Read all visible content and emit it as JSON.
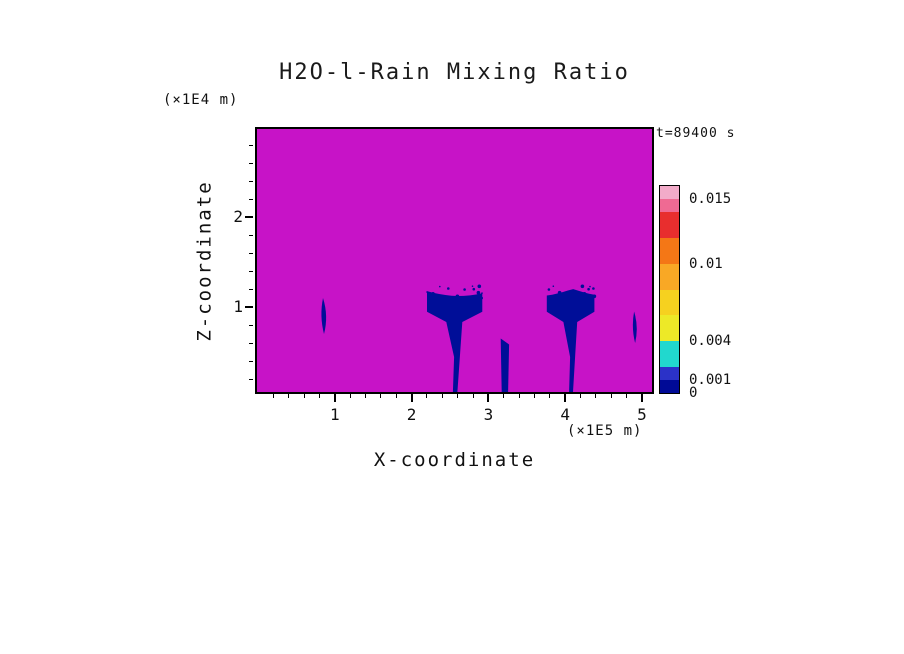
{
  "title": "H2O-l-Rain Mixing Ratio",
  "time_label": "t=89400 s",
  "axes": {
    "x_label": "X-coordinate",
    "x_units_label": "(×1E5 m)",
    "y_label": "Z-coordinate",
    "y_units_label": "(×1E4 m)"
  },
  "colors": {
    "field_background": "#C713C7",
    "rain_feature": "#000E98",
    "rain_speckle": "#2B32C8",
    "frame": "#000000",
    "text": "#111111"
  },
  "colorbar": {
    "max_value": 0.016,
    "tick_labels": [
      {
        "text": "0.015",
        "value": 0.015
      },
      {
        "text": "0.01",
        "value": 0.01
      },
      {
        "text": "0.004",
        "value": 0.004
      },
      {
        "text": "0.001",
        "value": 0.001
      },
      {
        "text": "0",
        "value": 0
      }
    ],
    "segments_bottom_to_top": [
      {
        "from": 0,
        "to": 0.001,
        "color": "#000A96"
      },
      {
        "from": 0.001,
        "to": 0.002,
        "color": "#2B32C8"
      },
      {
        "from": 0.002,
        "to": 0.004,
        "color": "#21D8CE"
      },
      {
        "from": 0.004,
        "to": 0.006,
        "color": "#EDE927"
      },
      {
        "from": 0.006,
        "to": 0.008,
        "color": "#F6D11F"
      },
      {
        "from": 0.008,
        "to": 0.01,
        "color": "#F9A825"
      },
      {
        "from": 0.01,
        "to": 0.012,
        "color": "#F47716"
      },
      {
        "from": 0.012,
        "to": 0.014,
        "color": "#E82E2E"
      },
      {
        "from": 0.014,
        "to": 0.015,
        "color": "#EF6A93"
      },
      {
        "from": 0.015,
        "to": 0.016,
        "color": "#F2ABC9"
      }
    ]
  },
  "chart_data": {
    "type": "heatmap",
    "title": "H2O-l-Rain Mixing Ratio",
    "xlabel": "X-coordinate (×1E5 m)",
    "ylabel": "Z-coordinate (×1E4 m)",
    "xlim": [
      0,
      5.15
    ],
    "ylim": [
      0,
      2.95
    ],
    "x_ticks": [
      1,
      2,
      3,
      4,
      5
    ],
    "y_ticks": [
      2,
      1
    ],
    "x_minor_tick_step": 0.2,
    "y_minor_tick_step": 0.2,
    "time_annotation": "t=89400 s",
    "colorbar_levels": [
      0,
      0.001,
      0.004,
      0.01,
      0.015
    ],
    "background_field": "uniform magenta field (rain mixing ratio ≈ 0 everywhere except rain shafts)",
    "features": [
      {
        "shape": "wisp",
        "x": [
          0.8,
          0.92
        ],
        "z": [
          0.7,
          1.1
        ],
        "description": "small rain wisp aloft"
      },
      {
        "shape": "plume",
        "x": [
          2.2,
          2.92
        ],
        "z": [
          0.05,
          1.2
        ],
        "description": "large rain plume with tail reaching surface"
      },
      {
        "shape": "streak",
        "x": [
          3.16,
          3.27
        ],
        "z": [
          0.05,
          0.65
        ],
        "description": "narrow rain streak near surface"
      },
      {
        "shape": "plume",
        "x": [
          3.76,
          4.38
        ],
        "z": [
          0.05,
          1.2
        ],
        "description": "large rain plume with tail reaching surface"
      },
      {
        "shape": "wisp",
        "x": [
          4.86,
          4.96
        ],
        "z": [
          0.6,
          0.95
        ],
        "description": "small rain wisp aloft"
      }
    ],
    "feature_value_note": "dark blue rain regions correspond to lowest color band (0 to 0.001)"
  }
}
